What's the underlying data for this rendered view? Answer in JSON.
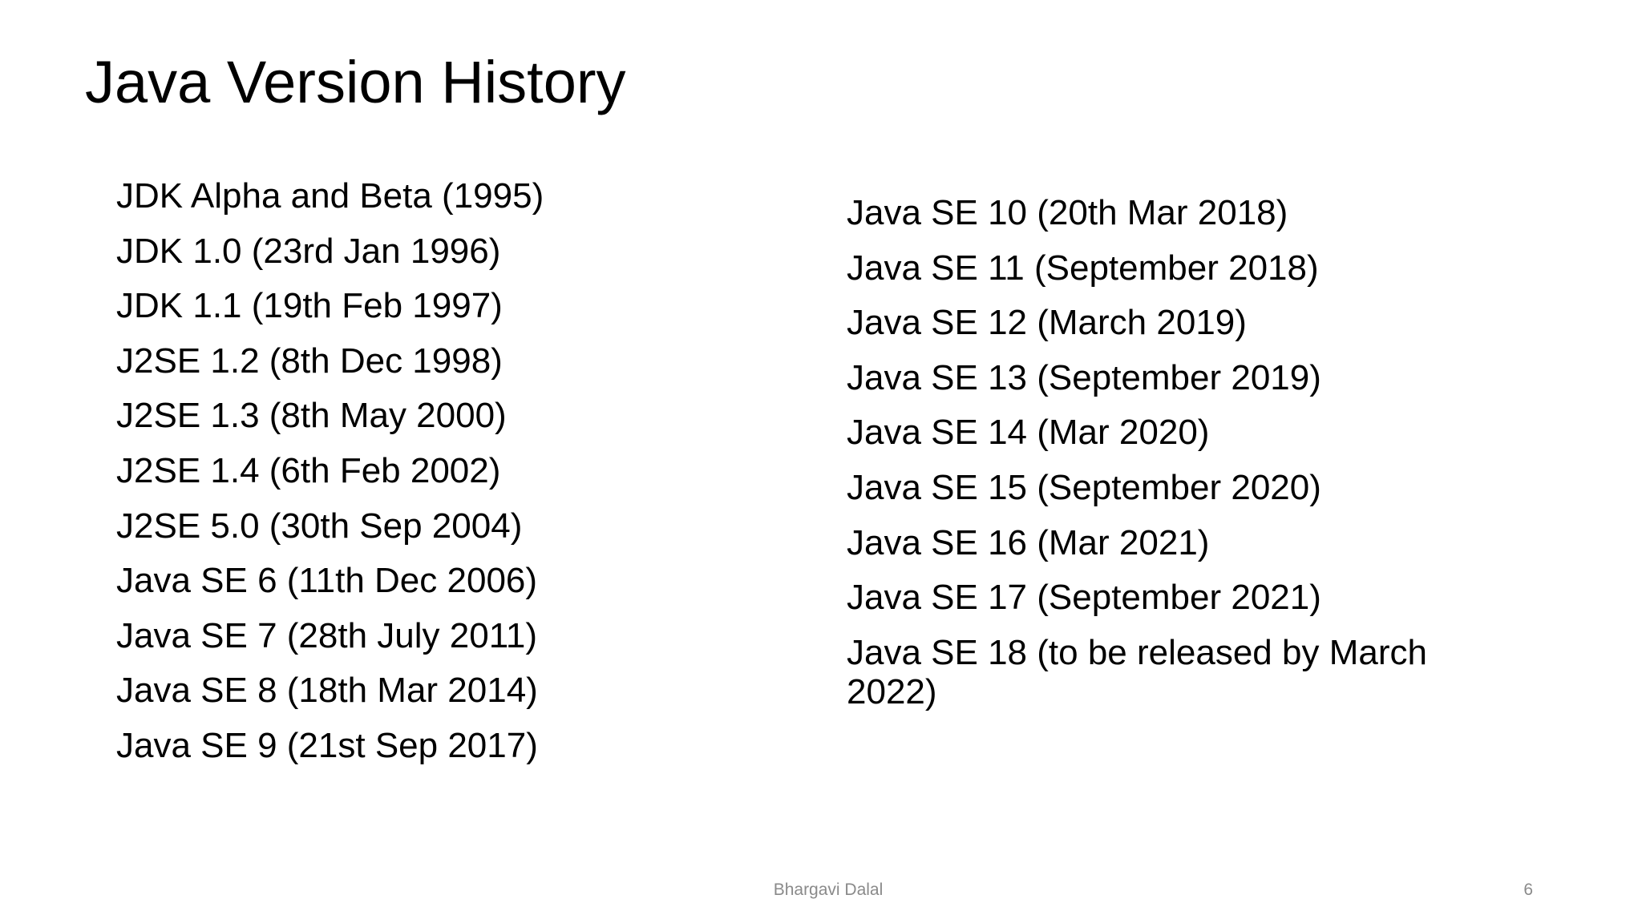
{
  "header": {
    "title": "Java Version History"
  },
  "left_column": {
    "items": [
      "JDK Alpha and Beta (1995)",
      "JDK 1.0 (23rd Jan 1996)",
      "JDK 1.1 (19th Feb 1997)",
      "J2SE 1.2 (8th Dec 1998)",
      "J2SE 1.3 (8th May 2000)",
      "J2SE 1.4 (6th Feb 2002)",
      "J2SE 5.0 (30th Sep 2004)",
      "Java SE 6 (11th Dec 2006)",
      "Java SE 7 (28th July 2011)",
      "Java SE 8 (18th Mar 2014)",
      "Java SE 9 (21st Sep 2017)"
    ]
  },
  "right_column": {
    "items": [
      "Java SE 10 (20th Mar 2018)",
      "Java SE 11 (September 2018)",
      "Java SE 12 (March 2019)",
      "Java SE 13 (September 2019)",
      "Java SE 14 (Mar 2020)",
      "Java SE 15 (September 2020)",
      "Java SE 16 (Mar 2021)",
      "Java SE 17 (September 2021)",
      "Java SE 18 (to be released by March 2022)"
    ]
  },
  "footer": {
    "author": "Bhargavi Dalal",
    "page_number": "6"
  }
}
